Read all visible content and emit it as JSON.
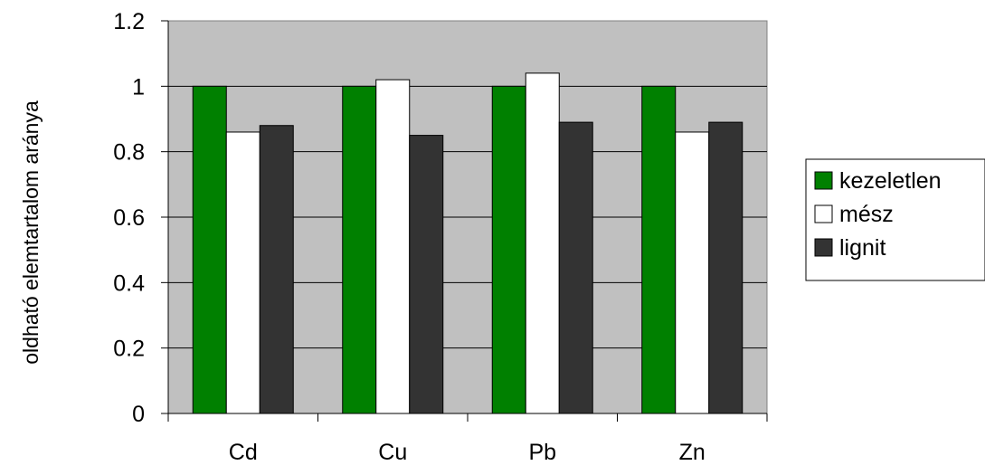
{
  "chart_data": {
    "type": "bar",
    "title": "",
    "xlabel": "",
    "ylabel": "oldható elemtartalom aránya",
    "categories": [
      "Cd",
      "Cu",
      "Pb",
      "Zn"
    ],
    "series": [
      {
        "name": "kezeletlen",
        "color": "#008000",
        "values": [
          1.0,
          1.0,
          1.0,
          1.0
        ]
      },
      {
        "name": "mész",
        "color": "#ffffff",
        "values": [
          0.86,
          1.02,
          1.04,
          0.86
        ]
      },
      {
        "name": "lignit",
        "color": "#333333",
        "values": [
          0.88,
          0.85,
          0.89,
          0.89
        ]
      }
    ],
    "ylim": [
      0,
      1.2
    ],
    "yticks": [
      "0",
      "0.2",
      "0.4",
      "0.6",
      "0.8",
      "1",
      "1.2"
    ],
    "grid": true,
    "plot_background": "#c0c0c0",
    "legend_position": "right"
  }
}
